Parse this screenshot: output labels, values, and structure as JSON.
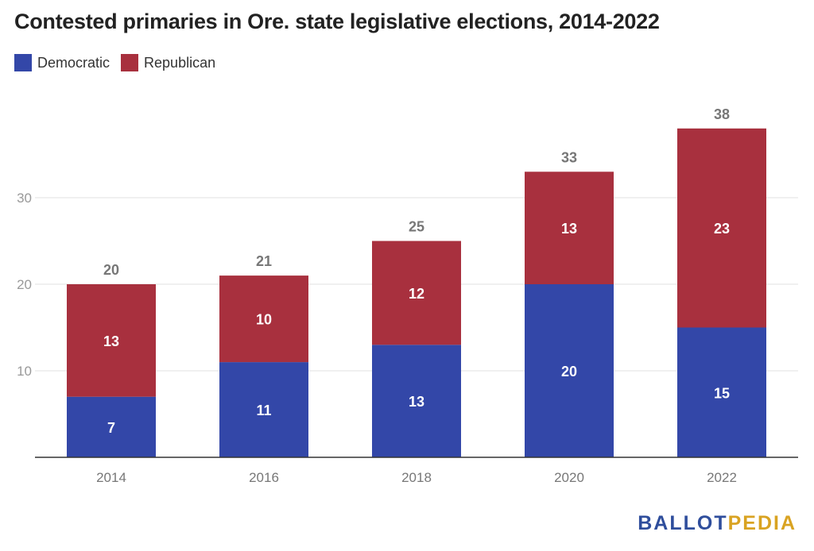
{
  "title": "Contested primaries in Ore. state legislative elections, 2014-2022",
  "legend": [
    {
      "label": "Democratic",
      "color": "#3347a8"
    },
    {
      "label": "Republican",
      "color": "#a8303e"
    }
  ],
  "logo": {
    "part1": "BALLOT",
    "part2": "PEDIA"
  },
  "chart_data": {
    "type": "bar",
    "stacked": true,
    "categories": [
      "2014",
      "2016",
      "2018",
      "2020",
      "2022"
    ],
    "series": [
      {
        "name": "Democratic",
        "color": "#3347a8",
        "values": [
          7,
          11,
          13,
          20,
          15
        ]
      },
      {
        "name": "Republican",
        "color": "#a8303e",
        "values": [
          13,
          10,
          12,
          13,
          23
        ]
      }
    ],
    "totals": [
      20,
      21,
      25,
      33,
      38
    ],
    "ylim": [
      0,
      40
    ],
    "yticks": [
      10,
      20,
      30
    ],
    "grid": true,
    "legend_position": "top-left"
  }
}
